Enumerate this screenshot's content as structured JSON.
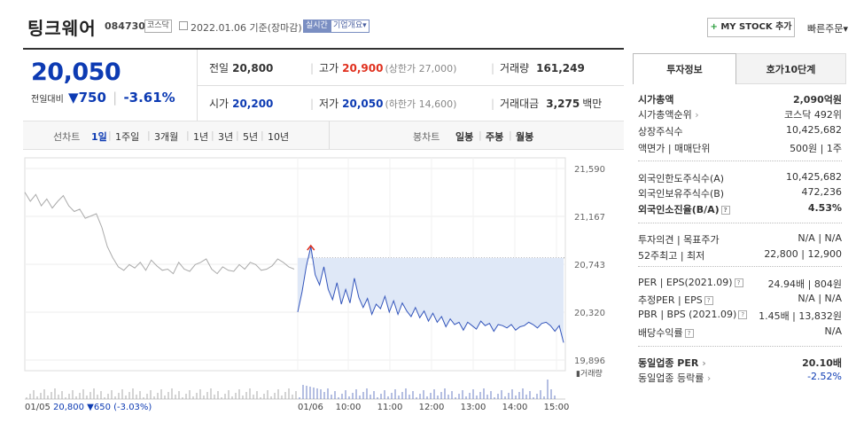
{
  "header": {
    "company_name": "팅크웨어",
    "stock_code": "084730",
    "market_tag": "코스닥",
    "date_label": "2022.01.06 기준(장마감)",
    "realtime_tag": "실시간",
    "company_info_tag": "기업개요▾",
    "mystock_plus": "+",
    "mystock_label": "MY STOCK 추가",
    "quick_order": "빠른주문▾"
  },
  "quote": {
    "price": "20,050",
    "change_label": "전일대비",
    "change_value": "▼750",
    "change_pct": "-3.61%",
    "prev_close_label": "전일",
    "prev_close": "20,800",
    "high_label": "고가",
    "high": "20,900",
    "upper_limit": "(상한가 27,000)",
    "volume_label": "거래량",
    "volume": "161,249",
    "open_label": "시가",
    "open": "20,200",
    "low_label": "저가",
    "low": "20,050",
    "lower_limit": "(하한가 14,600)",
    "amount_label": "거래대금",
    "amount": "3,275",
    "amount_unit": "백만"
  },
  "period_bar": {
    "line_label": "선차트",
    "periods": [
      "1일",
      "1주일",
      "3개월",
      "1년",
      "3년",
      "5년",
      "10년"
    ],
    "selected_period": "1일",
    "candle_label": "봉차트",
    "candles": [
      "일봉",
      "주봉",
      "월봉"
    ]
  },
  "chart_data": {
    "type": "line",
    "y_ticks": [
      "21,590",
      "21,167",
      "20,743",
      "20,320",
      "19,896"
    ],
    "ylim": [
      19896,
      21590
    ],
    "x_ticks": [
      "01/06",
      "10:00",
      "11:00",
      "12:00",
      "13:00",
      "14:00",
      "15:00"
    ],
    "volume_label": "▮거래량",
    "reference_line": 20800,
    "high_marker": 20900,
    "prev_day_label": "01/05",
    "prev_day_close": "20,800",
    "prev_day_change": "▼650",
    "prev_day_pct": "(-3.03%)",
    "colors": {
      "line": "#3355bb",
      "fill": "#dfe8f7",
      "marker": "#e0301e"
    },
    "prev_day_series": [
      21380,
      21300,
      21360,
      21260,
      21320,
      21240,
      21300,
      21350,
      21260,
      21210,
      21230,
      21150,
      21170,
      21190,
      21070,
      20900,
      20800,
      20720,
      20690,
      20740,
      20710,
      20760,
      20690,
      20780,
      20730,
      20690,
      20700,
      20660,
      20760,
      20700,
      20680,
      20740,
      20760,
      20790,
      20700,
      20660,
      20720,
      20690,
      20680,
      20740,
      20700,
      20760,
      20740,
      20690,
      20700,
      20730,
      20790,
      20760,
      20720,
      20700
    ],
    "today_series": [
      20320,
      20500,
      20730,
      20900,
      20650,
      20560,
      20720,
      20520,
      20430,
      20580,
      20390,
      20520,
      20400,
      20620,
      20450,
      20360,
      20440,
      20300,
      20390,
      20350,
      20460,
      20320,
      20420,
      20300,
      20400,
      20330,
      20280,
      20360,
      20270,
      20330,
      20240,
      20310,
      20230,
      20280,
      20190,
      20260,
      20210,
      20230,
      20160,
      20230,
      20200,
      20170,
      20240,
      20200,
      20220,
      20150,
      20210,
      20200,
      20180,
      20210,
      20160,
      20190,
      20200,
      20230,
      20210,
      20180,
      20220,
      20230,
      20200,
      20150,
      20200,
      20050
    ]
  },
  "info_tabs": {
    "invest": "투자정보",
    "orderbook": "호가10단계"
  },
  "info": {
    "market_cap_label": "시가총액",
    "market_cap": "2,090억원",
    "market_cap_rank_label": "시가총액순위",
    "market_cap_rank": "코스닥 492위",
    "shares_label": "상장주식수",
    "shares": "10,425,682",
    "par_label": "액면가 | 매매단위",
    "par_value": "500원 | 1주",
    "foreign_limit_label": "외국인한도주식수(A)",
    "foreign_limit": "10,425,682",
    "foreign_hold_label": "외국인보유주식수(B)",
    "foreign_hold": "472,236",
    "foreign_ratio_label": "외국인소진율(B/A)",
    "foreign_ratio": "4.53%",
    "opinion_label": "투자의견 | 목표주가",
    "opinion_value": "N/A | N/A",
    "week52_label": "52주최고 | 최저",
    "week52_value": "22,800 | 12,900",
    "per_label": "PER | EPS(2021.09)",
    "per_value": "24.94배 | 804원",
    "est_per_label": "추정PER | EPS",
    "est_per_value": "N/A | N/A",
    "pbr_label": "PBR | BPS (2021.09)",
    "pbr_value": "1.45배 | 13,832원",
    "div_label": "배당수익률",
    "div_value": "N/A",
    "industry_per_label": "동일업종 PER",
    "industry_per": "20.10배",
    "industry_rate_label": "동일업종 등락률",
    "industry_rate": "-2.52%"
  }
}
